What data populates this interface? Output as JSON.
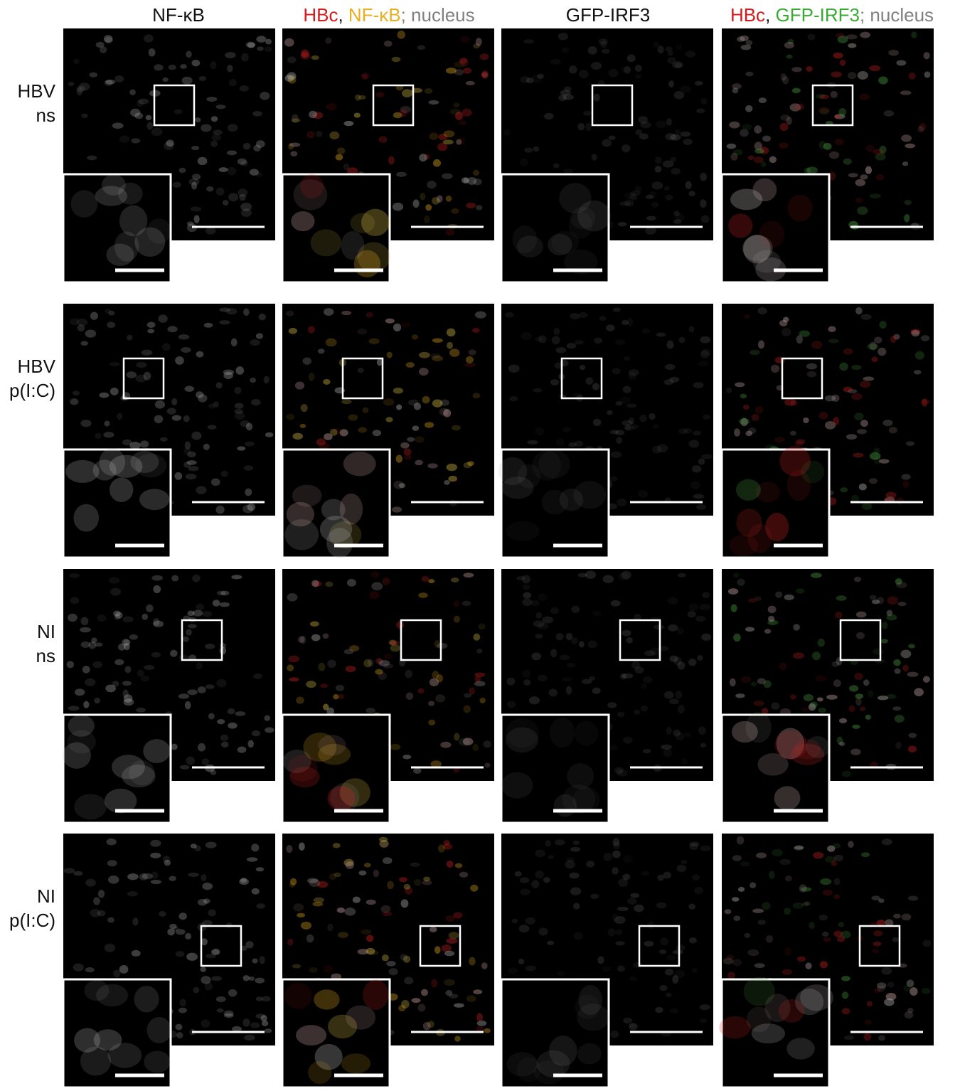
{
  "column_headers": [
    {
      "parts": [
        {
          "text": "NF-κB",
          "color": "#111111"
        }
      ]
    },
    {
      "parts": [
        {
          "text": "HBc",
          "color": "#d7191c"
        },
        {
          "text": ", ",
          "color": "#111111"
        },
        {
          "text": "NF-κB",
          "color": "#e8b020"
        },
        {
          "text": "; nucleus",
          "color": "#808080"
        }
      ]
    },
    {
      "parts": [
        {
          "text": "GFP-IRF3",
          "color": "#111111"
        }
      ]
    },
    {
      "parts": [
        {
          "text": "HBc",
          "color": "#d7191c"
        },
        {
          "text": ", ",
          "color": "#111111"
        },
        {
          "text": "GFP-IRF3",
          "color": "#3aaa35"
        },
        {
          "text": "; nucleus",
          "color": "#808080"
        }
      ]
    }
  ],
  "row_labels": [
    {
      "lines": [
        "HBV",
        "ns"
      ]
    },
    {
      "lines": [
        "HBV",
        "p(I:C)"
      ]
    },
    {
      "lines": [
        "NI",
        "ns"
      ]
    },
    {
      "lines": [
        "NI",
        "p(I:C)"
      ]
    }
  ]
}
